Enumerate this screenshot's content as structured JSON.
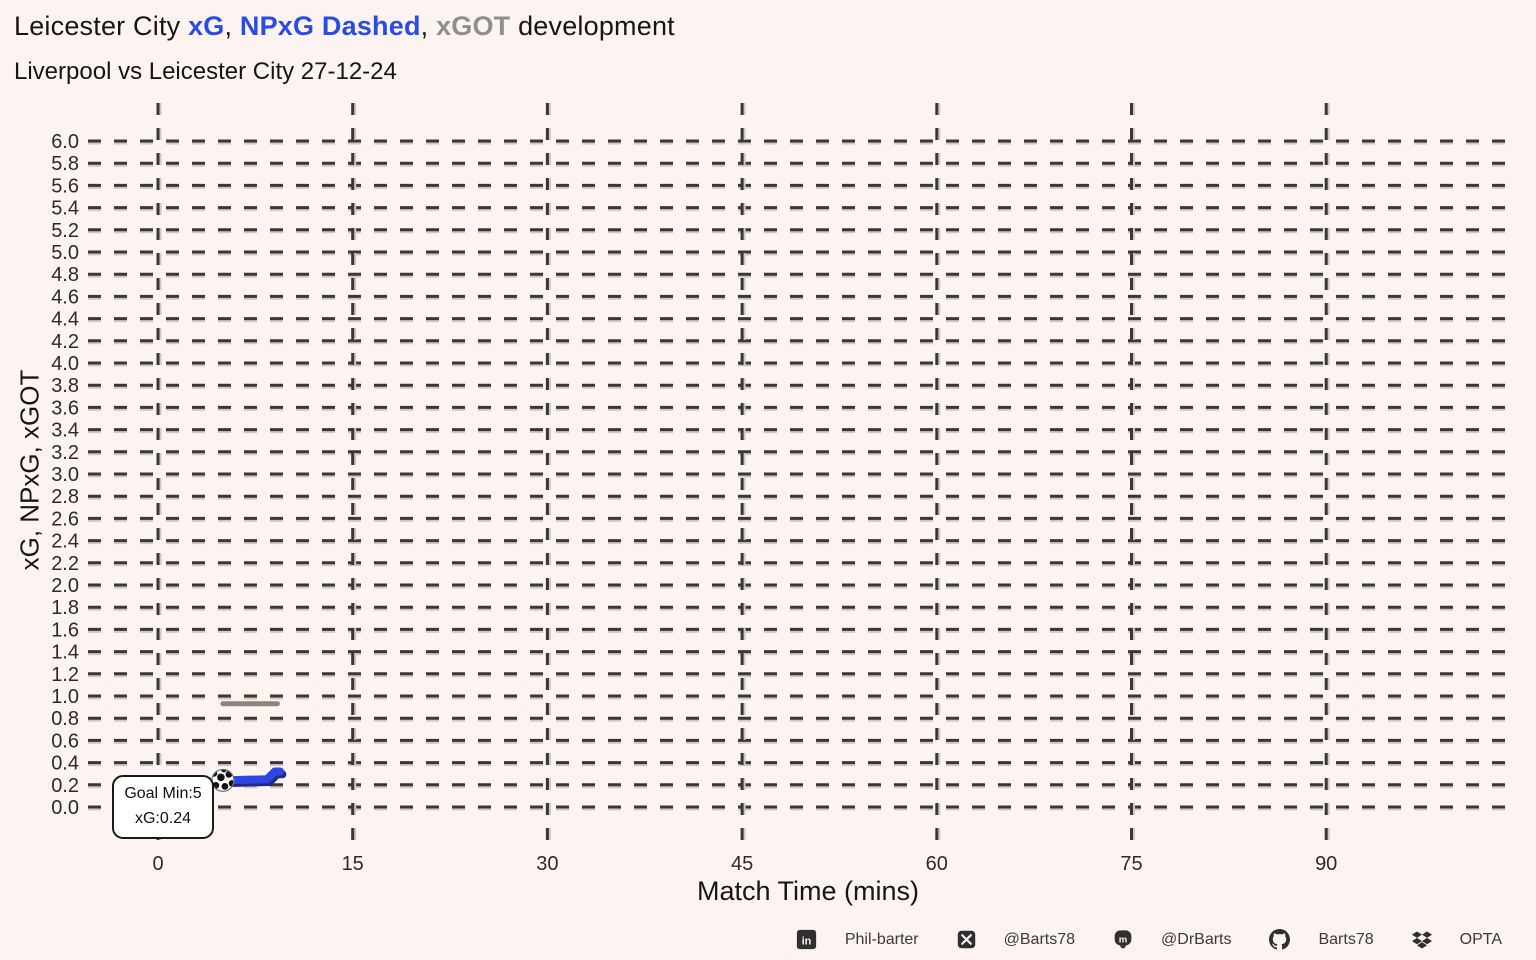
{
  "header": {
    "title_segments": [
      {
        "text": "Leicester City ",
        "color": "#161616",
        "bold": false
      },
      {
        "text": "xG",
        "color": "#2b4ce2",
        "bold": true
      },
      {
        "text": ", ",
        "color": "#161616",
        "bold": false
      },
      {
        "text": "NPxG Dashed",
        "color": "#2b4ce2",
        "bold": true
      },
      {
        "text": ", ",
        "color": "#161616",
        "bold": false
      },
      {
        "text": "xGOT",
        "color": "#8e8e8e",
        "bold": true
      },
      {
        "text": " development",
        "color": "#161616",
        "bold": false
      }
    ],
    "subtitle": "Liverpool vs Leicester City 27-12-24"
  },
  "chart_data": {
    "type": "line",
    "title": "Leicester City xG, NPxG Dashed, xGOT development",
    "subtitle": "Liverpool vs Leicester City 27-12-24",
    "xlabel": "Match Time (mins)",
    "ylabel": "xG, NPxG, xGOT",
    "x_ticks": [
      0,
      15,
      30,
      45,
      60,
      75,
      90
    ],
    "y_ticks": [
      0.0,
      0.2,
      0.4,
      0.6,
      0.8,
      1.0,
      1.2,
      1.4,
      1.6,
      1.8,
      2.0,
      2.2,
      2.4,
      2.6,
      2.8,
      3.0,
      3.2,
      3.4,
      3.6,
      3.8,
      4.0,
      4.2,
      4.4,
      4.6,
      4.8,
      5.0,
      5.2,
      5.4,
      5.6,
      5.8,
      6.0
    ],
    "xlim": [
      -5.5,
      104
    ],
    "ylim": [
      0,
      6
    ],
    "grid": "dashed",
    "legend": false,
    "series": [
      {
        "name": "xG",
        "color": "#2e46e2",
        "style": "solid",
        "width": 8,
        "shadow": true,
        "points": [
          [
            5,
            0.24
          ],
          [
            8.4,
            0.25
          ],
          [
            9.0,
            0.32
          ],
          [
            9.4,
            0.32
          ]
        ]
      },
      {
        "name": "NPxG",
        "color": "#2e46e2",
        "style": "dashed",
        "width": 3.5,
        "points": [
          [
            5,
            0.24
          ],
          [
            8.4,
            0.25
          ],
          [
            9.0,
            0.32
          ],
          [
            9.4,
            0.32
          ]
        ]
      },
      {
        "name": "xGOT",
        "color": "#8b8477",
        "style": "solid",
        "width": 5,
        "points": [
          [
            5,
            0.93
          ],
          [
            9.2,
            0.93
          ]
        ]
      }
    ],
    "markers": [
      {
        "type": "football",
        "x": 5,
        "y": 0.24,
        "meaning": "goal"
      }
    ]
  },
  "annotation": {
    "line1": "Goal Min:5",
    "line2": "xG:0.24"
  },
  "footer": {
    "items": [
      {
        "icon": "linkedin-icon",
        "label": "Phil-barter"
      },
      {
        "icon": "x-icon",
        "label": "@Barts78"
      },
      {
        "icon": "mastodon-icon",
        "label": "@DrBarts"
      },
      {
        "icon": "github-icon",
        "label": "Barts78"
      },
      {
        "icon": "dropbox-icon",
        "label": "OPTA"
      }
    ]
  },
  "colors": {
    "background": "#fdf4f2",
    "grid": "#383838",
    "grid_shadow": "#cfc8c5",
    "tick_text": "#2b2b2b",
    "accent_blue": "#2e46e2",
    "accent_gray": "#8b8477"
  }
}
